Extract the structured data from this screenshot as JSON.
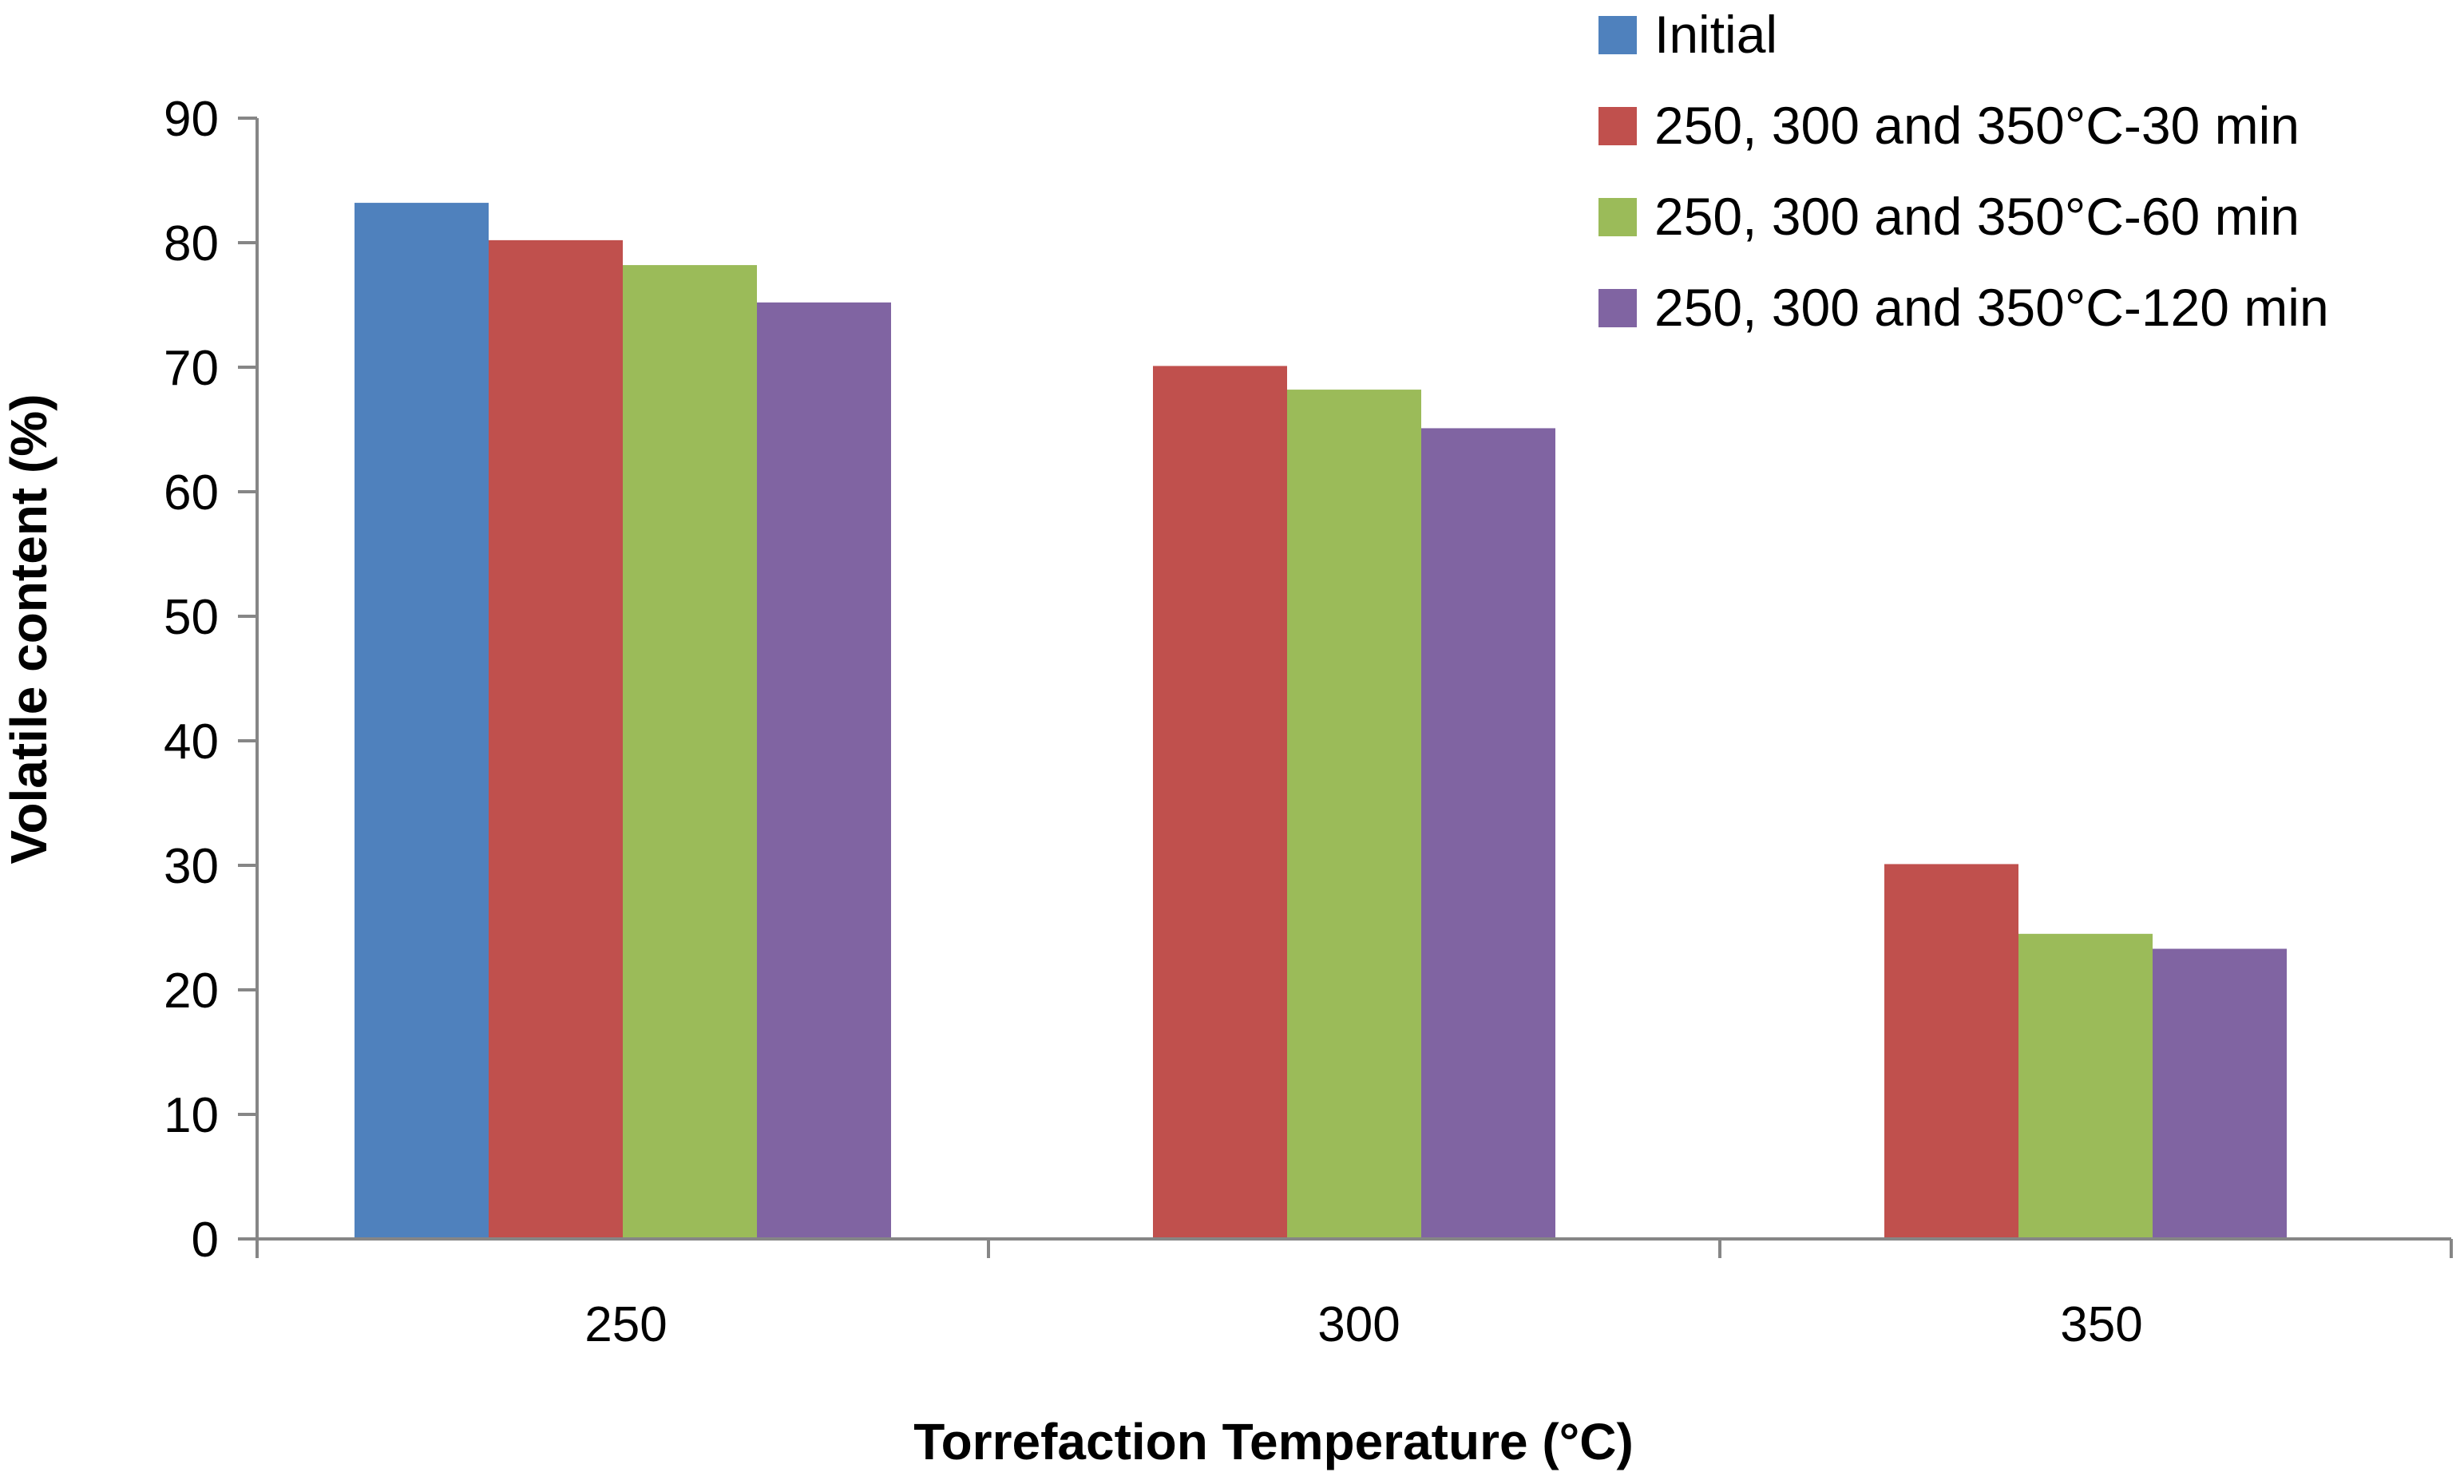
{
  "chart_data": {
    "type": "bar",
    "title": "",
    "xlabel": "Torrefaction Temperature (°C)",
    "ylabel": "Volatile content (%)",
    "ylim": [
      0,
      90
    ],
    "yticks": [
      "0",
      "10",
      "20",
      "30",
      "40",
      "50",
      "60",
      "70",
      "80",
      "90"
    ],
    "categories": [
      "250",
      "300",
      "350"
    ],
    "legend_position": "top-right",
    "series": [
      {
        "name": "Initial",
        "color": "#4F81BD",
        "values": [
          83.2,
          null,
          null
        ]
      },
      {
        "name": "250, 300 and 350°C-30 min",
        "color": "#C0504D",
        "values": [
          80.2,
          70.1,
          30.1
        ]
      },
      {
        "name": "250, 300 and 350°C-60 min",
        "color": "#9BBB59",
        "values": [
          78.2,
          68.2,
          24.5
        ]
      },
      {
        "name": "250, 300 and 350°C-120 min",
        "color": "#8064A2",
        "values": [
          75.2,
          65.1,
          23.3
        ]
      }
    ]
  }
}
